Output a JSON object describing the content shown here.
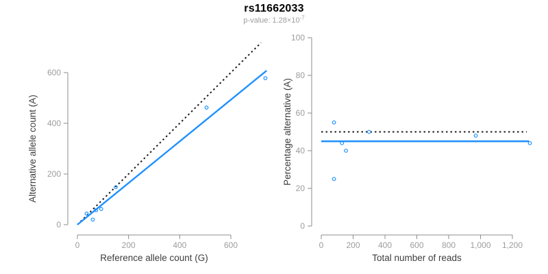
{
  "figure": {
    "title": "rs11662033",
    "subtitle_base": "p-value: 1.28×10",
    "subtitle_exponent": "-7"
  },
  "colors": {
    "accent_blue": "#1E90FF",
    "dotted_black": "#1a1a1a",
    "axis_gray": "#8c8c8c",
    "tick_label_gray": "#9c9c9c",
    "axis_title_dark": "#3d3d3d",
    "title_black": "#000000",
    "subtitle_gray": "#9c9c9c",
    "background": "#ffffff"
  },
  "chart_data": [
    {
      "type": "scatter",
      "name": "allele-count-scatter",
      "xlabel": "Reference allele count (G)",
      "ylabel": "Alternative allele count (A)",
      "xticks": [
        0,
        200,
        400,
        600
      ],
      "xtick_labels": [
        "0",
        "200",
        "400",
        "600"
      ],
      "yticks": [
        0,
        200,
        400,
        600
      ],
      "ytick_labels": [
        "0",
        "200",
        "400",
        "600"
      ],
      "xlim": [
        0,
        745
      ],
      "ylim": [
        0,
        720
      ],
      "grid": false,
      "points": [
        [
          36,
          44
        ],
        [
          60,
          20
        ],
        [
          73,
          57
        ],
        [
          93,
          62
        ],
        [
          150,
          148
        ],
        [
          505,
          462
        ],
        [
          735,
          578
        ]
      ],
      "lines": [
        {
          "name": "identity-line",
          "style": "dotted",
          "color_key": "dotted_black",
          "x1": 0,
          "y1": 0,
          "x2": 718,
          "y2": 718
        },
        {
          "name": "regression-line",
          "style": "solid",
          "color_key": "accent_blue",
          "x1": 0,
          "y1": 0,
          "x2": 740,
          "y2": 608
        }
      ]
    },
    {
      "type": "scatter",
      "name": "percentage-scatter",
      "xlabel": "Total number of reads",
      "ylabel": "Percentage alternative (A)",
      "xticks": [
        0,
        200,
        400,
        600,
        800,
        1000,
        1200
      ],
      "xtick_labels": [
        "0",
        "200",
        "400",
        "600",
        "800",
        "1,000",
        "1,200"
      ],
      "yticks": [
        0,
        20,
        40,
        60,
        80,
        100
      ],
      "ytick_labels": [
        "0",
        "20",
        "40",
        "60",
        "80",
        "100"
      ],
      "xlim": [
        0,
        1340
      ],
      "ylim": [
        0,
        100
      ],
      "grid": false,
      "points": [
        [
          80,
          55
        ],
        [
          80,
          25
        ],
        [
          130,
          44
        ],
        [
          155,
          40
        ],
        [
          300,
          50
        ],
        [
          970,
          48
        ],
        [
          1310,
          44
        ]
      ],
      "lines": [
        {
          "name": "expected-ratio-line",
          "style": "dotted",
          "color_key": "dotted_black",
          "x1": 0,
          "y1": 50,
          "x2": 1290,
          "y2": 50
        },
        {
          "name": "mean-ratio-line",
          "style": "solid",
          "color_key": "accent_blue",
          "x1": 0,
          "y1": 45,
          "x2": 1305,
          "y2": 45
        }
      ]
    }
  ]
}
